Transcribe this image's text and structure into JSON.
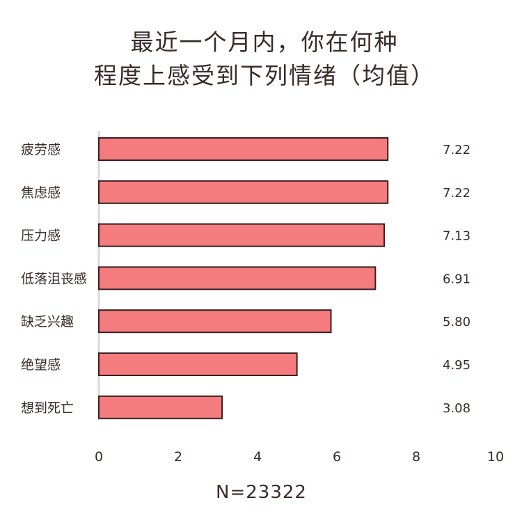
{
  "chart_data": {
    "type": "bar",
    "orientation": "horizontal",
    "title_lines": [
      "最近一个月内，你在何种",
      "程度上感受到下列情绪（均值）"
    ],
    "categories": [
      "疲劳感",
      "焦虑感",
      "压力感",
      "低落沮丧感",
      "缺乏兴趣",
      "绝望感",
      "想到死亡"
    ],
    "values": [
      7.22,
      7.22,
      7.13,
      6.91,
      5.8,
      4.95,
      3.08
    ],
    "value_labels": [
      "7.22",
      "7.22",
      "7.13",
      "6.91",
      "5.80",
      "4.95",
      "3.08"
    ],
    "x_ticks": [
      "0",
      "2",
      "4",
      "6",
      "8",
      "10"
    ],
    "xlim": [
      0,
      10
    ],
    "bar_color": "#f47c7e",
    "grid": false,
    "note": "N=23322"
  }
}
